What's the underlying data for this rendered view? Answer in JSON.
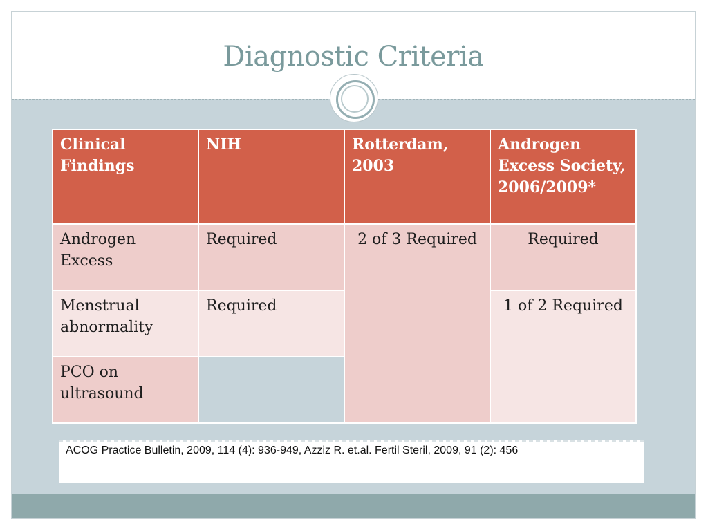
{
  "slide": {
    "title": "Diagnostic Criteria"
  },
  "table": {
    "headers": [
      "Clinical Findings",
      "NIH",
      "Rotterdam, 2003",
      "Androgen Excess Society, 2006/2009*"
    ],
    "rows": [
      {
        "finding": "Androgen Excess",
        "nih": "Required"
      },
      {
        "finding": "Menstrual abnormality",
        "nih": "Required"
      },
      {
        "finding": "PCO on ultrasound",
        "nih": ""
      }
    ],
    "rotterdam_merged": "2 of 3 Required",
    "aes_row1": "Required",
    "aes_merged": "1 of 2 Required"
  },
  "citation": "ACOG Practice Bulletin, 2009, 114 (4): 936-949, Azziz  R. et.al. Fertil Steril, 2009, 91 (2): 456",
  "colors": {
    "header_bg": "#d2604a",
    "cell_dark": "#eecdcb",
    "cell_light": "#f6e5e4",
    "slide_bg": "#c6d4da",
    "title": "#7a9a9c"
  }
}
